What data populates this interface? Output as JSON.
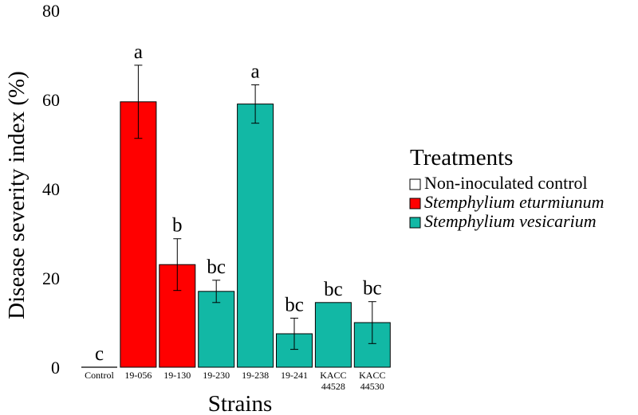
{
  "chart_data": {
    "type": "bar",
    "ylabel": "Disease severity index (%)",
    "xlabel": "Strains",
    "ylim": [
      0,
      80
    ],
    "yticks": [
      0,
      20,
      40,
      60,
      80
    ],
    "grid": false,
    "legend_position": "right",
    "legend": {
      "title": "Treatments",
      "entries": [
        {
          "label": "Non-inoculated control",
          "color": "#ffffff",
          "italic": false
        },
        {
          "label": "Stemphylium eturmiunum",
          "color": "#ff0000",
          "italic": true
        },
        {
          "label": "Stemphylium vesicarium",
          "color": "#12b8a5",
          "italic": true
        }
      ]
    },
    "bars": [
      {
        "category": [
          "Control"
        ],
        "value": 0,
        "error": 0,
        "letter": "c",
        "group": 0
      },
      {
        "category": [
          "19-056"
        ],
        "value": 59.5,
        "error": 8.2,
        "letter": "a",
        "group": 1
      },
      {
        "category": [
          "19-130"
        ],
        "value": 23,
        "error": 5.8,
        "letter": "b",
        "group": 1
      },
      {
        "category": [
          "19-230"
        ],
        "value": 17,
        "error": 2.5,
        "letter": "bc",
        "group": 2
      },
      {
        "category": [
          "19-238"
        ],
        "value": 59,
        "error": 4.3,
        "letter": "a",
        "group": 2
      },
      {
        "category": [
          "19-241"
        ],
        "value": 7.5,
        "error": 3.5,
        "letter": "bc",
        "group": 2
      },
      {
        "category": [
          "KACC",
          "44528"
        ],
        "value": 14.5,
        "error": 0,
        "letter": "bc",
        "group": 2
      },
      {
        "category": [
          "KACC",
          "44530"
        ],
        "value": 10,
        "error": 4.7,
        "letter": "bc",
        "group": 2
      }
    ]
  }
}
